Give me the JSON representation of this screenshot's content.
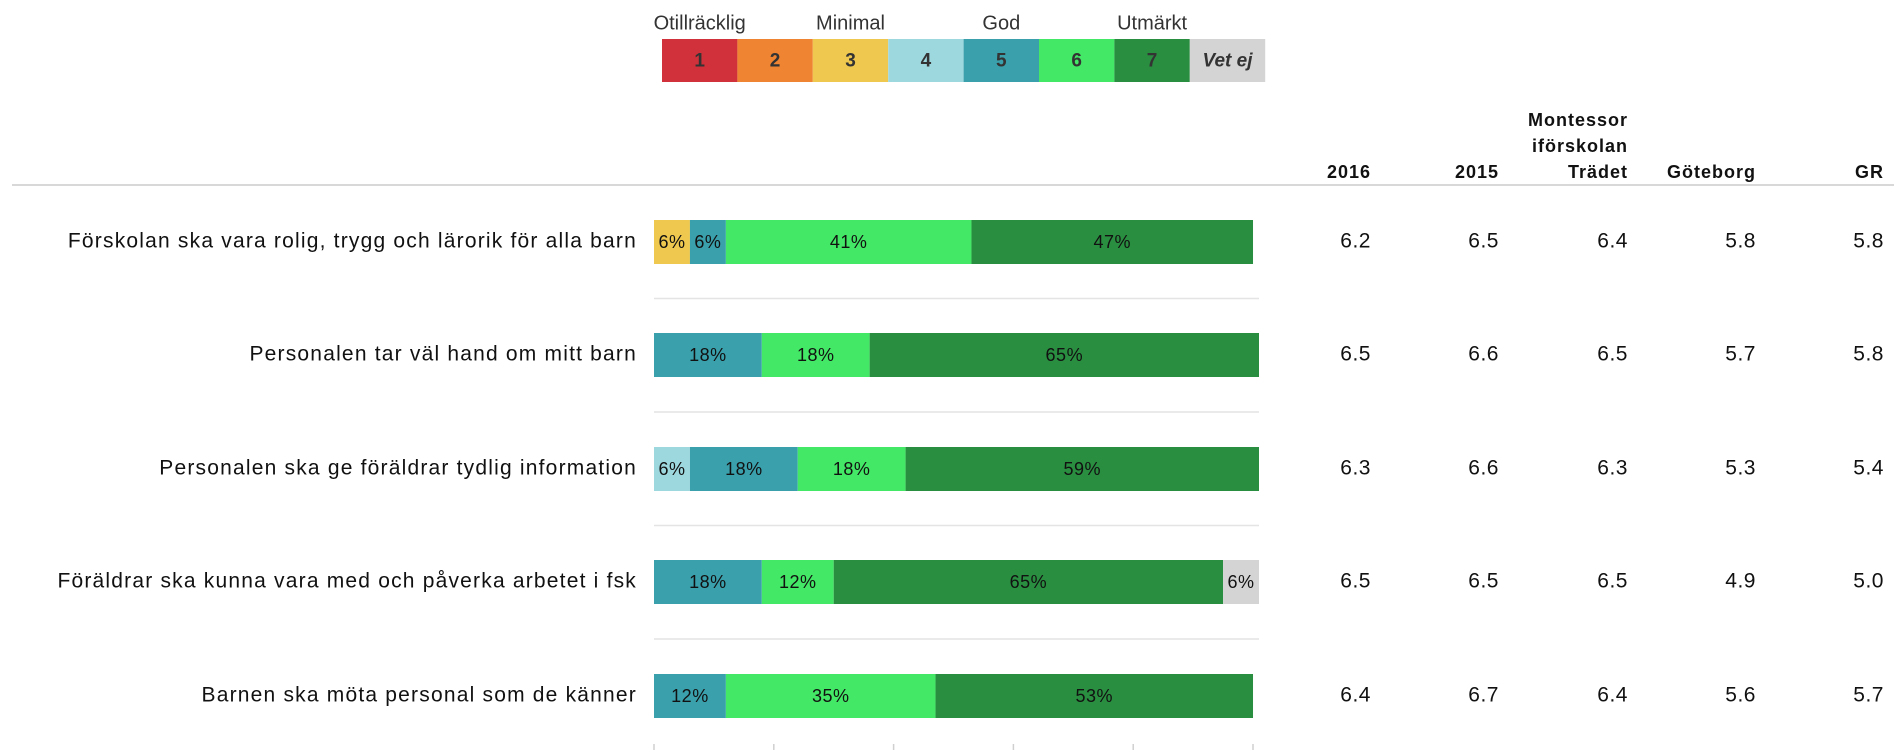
{
  "chart_data": {
    "type": "bar",
    "orientation": "horizontal",
    "stacked": true,
    "scale_labels": [
      "Otillräcklig",
      "Minimal",
      "God",
      "Utmärkt"
    ],
    "categories": [
      "Förskolan ska vara rolig, trygg och lärorik för alla barn",
      "Personalen tar väl hand om mitt barn",
      "Personalen ska ge föräldrar tydlig information",
      "Föräldrar ska kunna vara med och påverka arbetet i fsk",
      "Barnen ska möta personal som de känner"
    ],
    "series": [
      {
        "name": "1",
        "color": "#d0313a",
        "values": [
          null,
          null,
          null,
          null,
          null
        ],
        "value_labels": [
          null,
          null,
          null,
          null,
          null
        ]
      },
      {
        "name": "2",
        "color": "#ef8433",
        "values": [
          null,
          null,
          null,
          null,
          null
        ],
        "value_labels": [
          null,
          null,
          null,
          null,
          null
        ]
      },
      {
        "name": "3",
        "color": "#efc84f",
        "values": [
          6,
          null,
          null,
          null,
          null
        ],
        "value_labels": [
          "6%",
          null,
          null,
          null,
          null
        ]
      },
      {
        "name": "4",
        "color": "#9ed8df",
        "values": [
          null,
          null,
          6,
          null,
          null
        ],
        "value_labels": [
          null,
          null,
          "6%",
          null,
          null
        ]
      },
      {
        "name": "5",
        "color": "#3aa0ac",
        "values": [
          6,
          18,
          18,
          18,
          12
        ],
        "value_labels": [
          "6%",
          "18%",
          "18%",
          "18%",
          "12%"
        ]
      },
      {
        "name": "6",
        "color": "#43e866",
        "values": [
          41,
          18,
          18,
          12,
          35
        ],
        "value_labels": [
          "41%",
          "18%",
          "18%",
          "12%",
          "35%"
        ]
      },
      {
        "name": "7",
        "color": "#2a8e41",
        "values": [
          47,
          65,
          59,
          65,
          53
        ],
        "value_labels": [
          "47%",
          "65%",
          "59%",
          "65%",
          "53%"
        ]
      },
      {
        "name": "Vet ej",
        "color": "#d4d4d4",
        "values": [
          null,
          null,
          null,
          6,
          null
        ],
        "value_labels": [
          null,
          null,
          null,
          "6%",
          null
        ]
      }
    ],
    "xlim": [
      0,
      101
    ],
    "xticks": [
      0,
      20,
      40,
      60,
      80,
      100
    ],
    "table": {
      "columns": [
        [
          "2016"
        ],
        [
          "2015"
        ],
        [
          "Montessor",
          "iförskolan",
          "Trädet"
        ],
        [
          "Göteborg"
        ],
        [
          "GR"
        ]
      ],
      "rows": [
        [
          "6.2",
          "6.5",
          "6.4",
          "5.8",
          "5.8"
        ],
        [
          "6.5",
          "6.6",
          "6.5",
          "5.7",
          "5.8"
        ],
        [
          "6.3",
          "6.6",
          "6.3",
          "5.3",
          "5.4"
        ],
        [
          "6.5",
          "6.5",
          "6.5",
          "4.9",
          "5.0"
        ],
        [
          "6.4",
          "6.7",
          "6.4",
          "5.6",
          "5.7"
        ]
      ]
    }
  }
}
